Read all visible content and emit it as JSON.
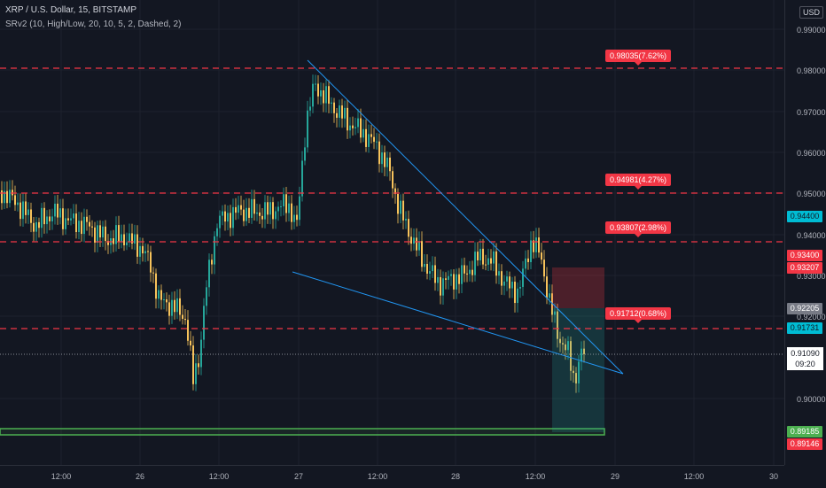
{
  "header": {
    "symbol_title": "XRP / U.S. Dollar, 15, BITSTAMP",
    "indicator_title": "SRv2 (10, High/Low, 20, 10, 5, 2, Dashed, 2)"
  },
  "price_scale": {
    "currency": "USD",
    "ticks": [
      "0.99000",
      "0.98000",
      "0.97000",
      "0.96000",
      "0.95000",
      "0.94000",
      "0.93000",
      "0.92000",
      "0.90000"
    ]
  },
  "price_tags": {
    "cyan": "0.94400",
    "red_1": "0.93400",
    "red_2": "0.93207",
    "gray": "0.92205",
    "cyan_2": "0.91731",
    "current_price": "0.91090",
    "countdown": "09:20",
    "green": "0.89185",
    "red_3": "0.89146"
  },
  "sr_levels": [
    {
      "label": "0.98035(7.62%)"
    },
    {
      "label": "0.94981(4.27%)"
    },
    {
      "label": "0.93807(2.98%)"
    },
    {
      "label": "0.91712(0.68%)"
    }
  ],
  "time_axis": [
    "12:00",
    "26",
    "12:00",
    "27",
    "12:00",
    "28",
    "12:00",
    "29",
    "12:00",
    "30"
  ],
  "colors": {
    "background": "#131722",
    "bull": "#26a69a",
    "bear": "#f7c35b",
    "sr_line": "#f23645",
    "trendline": "#2196f3",
    "support_box": "#4caf50"
  }
}
